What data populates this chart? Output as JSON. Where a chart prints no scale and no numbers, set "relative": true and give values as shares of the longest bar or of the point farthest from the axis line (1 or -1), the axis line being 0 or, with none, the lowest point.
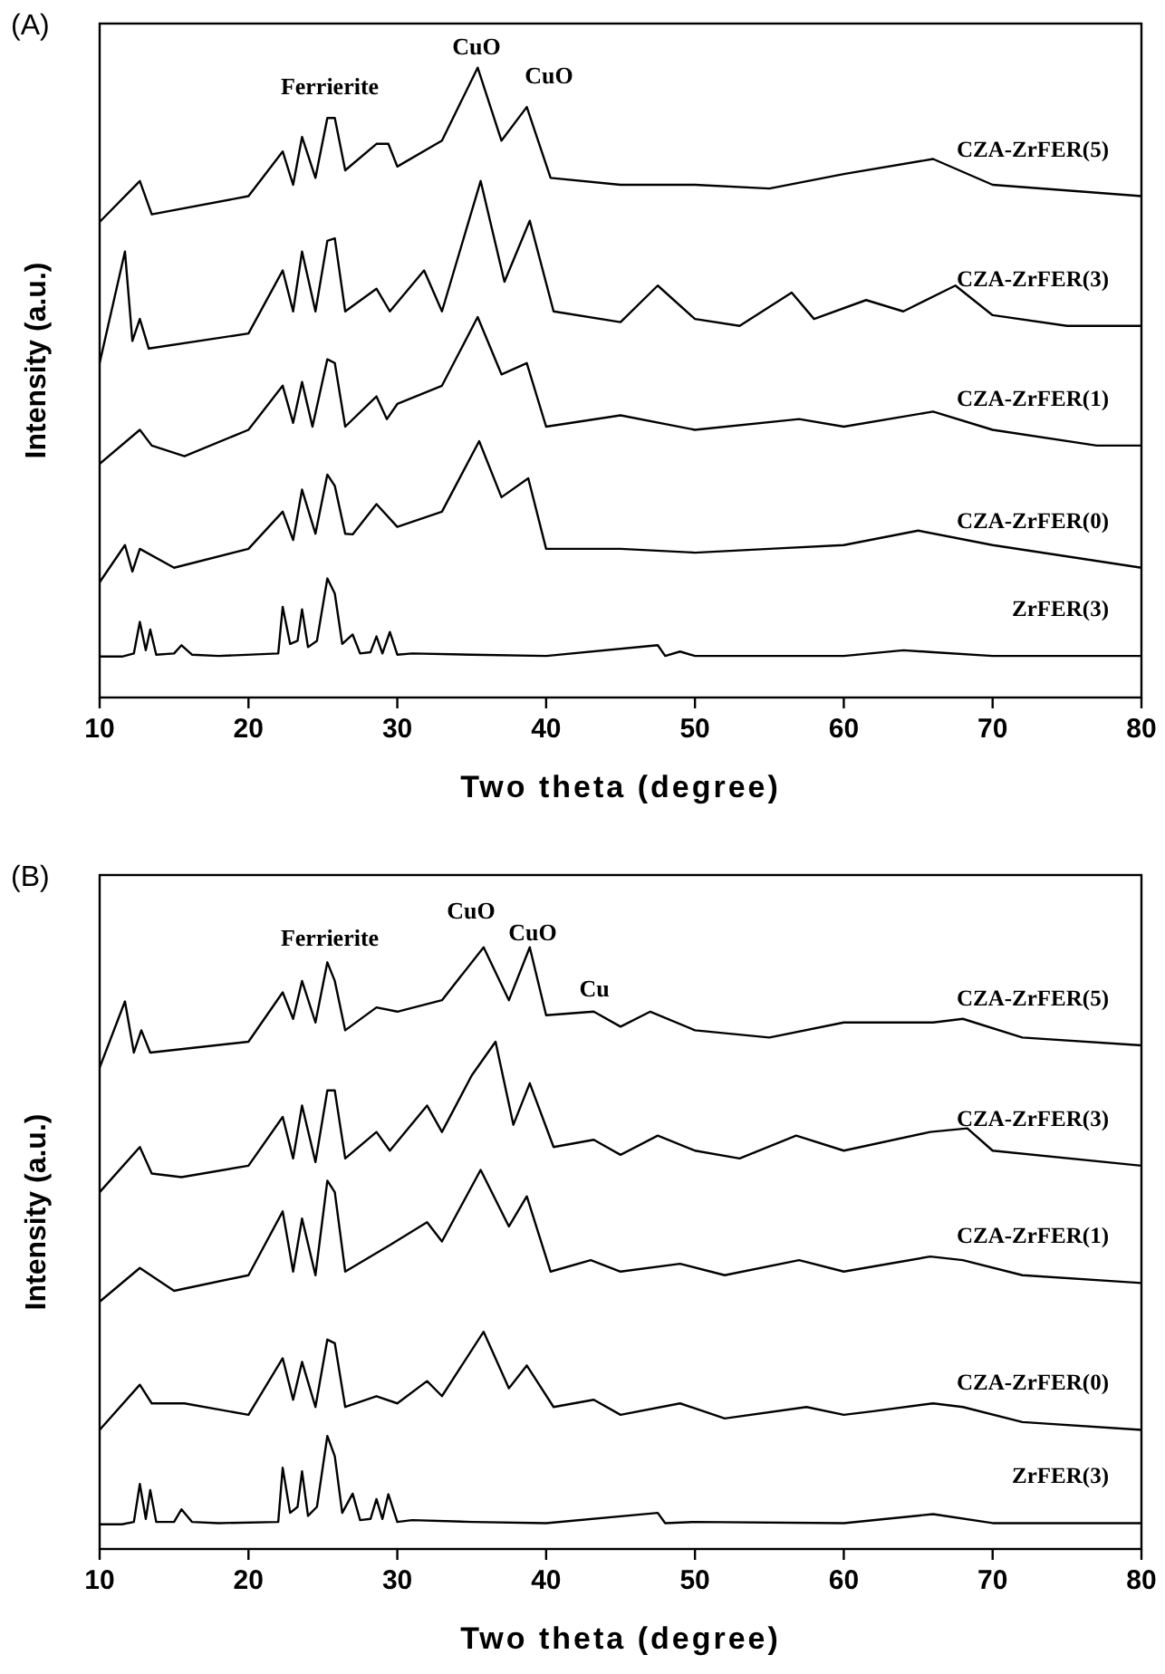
{
  "chart_data": [
    {
      "type": "line",
      "relative": true,
      "xlim": [
        10,
        80
      ],
      "xticks": [
        10,
        20,
        30,
        40,
        50,
        60,
        70,
        80
      ],
      "xlabel": "Two theta (degree)",
      "ylabel": "Intensity (a.u.)",
      "tick_labels": "x",
      "annotations": [
        "(A)",
        "Ferrierite",
        "CuO",
        "CuO"
      ],
      "series": [
        {
          "name": "ZrFER(3)",
          "color": "#000000",
          "x": [
            10,
            11.5,
            12.3,
            12.7,
            13.1,
            13.4,
            13.8,
            15,
            15.5,
            16.2,
            18,
            22,
            22.3,
            22.8,
            23.3,
            23.6,
            24,
            24.6,
            25.3,
            25.8,
            26.3,
            27,
            27.5,
            28.2,
            28.6,
            29,
            29.5,
            30,
            31,
            35,
            40,
            47.5,
            48,
            49,
            50,
            60,
            64,
            66,
            70,
            80
          ],
          "values": [
            0.065,
            0.065,
            0.07,
            0.12,
            0.075,
            0.108,
            0.068,
            0.07,
            0.083,
            0.068,
            0.066,
            0.07,
            0.144,
            0.085,
            0.09,
            0.14,
            0.08,
            0.09,
            0.189,
            0.165,
            0.085,
            0.1,
            0.07,
            0.072,
            0.097,
            0.07,
            0.104,
            0.068,
            0.07,
            0.068,
            0.066,
            0.083,
            0.066,
            0.073,
            0.066,
            0.066,
            0.075,
            0.072,
            0.066,
            0.066
          ]
        },
        {
          "name": "CZA-ZrFER(0)",
          "color": "#000000",
          "x": [
            10,
            11.7,
            12.2,
            12.7,
            15,
            20,
            22.3,
            23,
            23.6,
            24.5,
            25.3,
            25.8,
            26.5,
            27,
            28.6,
            30,
            33,
            35.5,
            37,
            38.8,
            40,
            45,
            50,
            55,
            60,
            65,
            70,
            75,
            80
          ],
          "values": [
            0.183,
            0.242,
            0.2,
            0.236,
            0.206,
            0.236,
            0.295,
            0.25,
            0.33,
            0.26,
            0.354,
            0.336,
            0.26,
            0.259,
            0.307,
            0.271,
            0.295,
            0.407,
            0.318,
            0.348,
            0.236,
            0.236,
            0.23,
            0.236,
            0.242,
            0.265,
            0.242,
            0.224,
            0.206
          ]
        },
        {
          "name": "CZA-ZrFER(1)",
          "color": "#000000",
          "x": [
            10,
            12.7,
            13.5,
            15.7,
            20,
            22.3,
            23,
            23.6,
            24.3,
            25.3,
            25.8,
            26.5,
            28.6,
            29.3,
            30,
            33,
            35.4,
            37,
            38.7,
            40,
            45,
            50,
            57,
            60,
            66,
            70,
            77,
            80
          ],
          "values": [
            0.371,
            0.425,
            0.4,
            0.383,
            0.425,
            0.495,
            0.436,
            0.501,
            0.43,
            0.537,
            0.531,
            0.43,
            0.478,
            0.442,
            0.466,
            0.495,
            0.604,
            0.513,
            0.531,
            0.43,
            0.448,
            0.425,
            0.442,
            0.43,
            0.454,
            0.425,
            0.4,
            0.4
          ]
        },
        {
          "name": "CZA-ZrFER(3)",
          "color": "#000000",
          "x": [
            10,
            11.7,
            12.2,
            12.7,
            13.3,
            20,
            22.3,
            23,
            23.6,
            24.5,
            25.3,
            25.8,
            26.5,
            28.6,
            29.5,
            31.8,
            33,
            35.6,
            37.2,
            38.9,
            40.5,
            45,
            47.5,
            50,
            53,
            56.5,
            58,
            61.5,
            64,
            67.5,
            70,
            75,
            80
          ],
          "values": [
            0.531,
            0.708,
            0.566,
            0.601,
            0.554,
            0.578,
            0.678,
            0.613,
            0.708,
            0.613,
            0.725,
            0.729,
            0.613,
            0.649,
            0.613,
            0.678,
            0.613,
            0.82,
            0.66,
            0.757,
            0.613,
            0.596,
            0.654,
            0.601,
            0.59,
            0.643,
            0.601,
            0.631,
            0.613,
            0.654,
            0.607,
            0.59,
            0.59
          ]
        },
        {
          "name": "CZA-ZrFER(5)",
          "color": "#000000",
          "x": [
            10,
            12.7,
            13.5,
            20,
            22.3,
            23,
            23.6,
            24.5,
            25.3,
            25.8,
            26.5,
            28.6,
            29.4,
            30,
            33,
            35.4,
            37,
            38.7,
            40.3,
            45,
            50,
            55,
            60,
            66,
            70,
            80
          ],
          "values": [
            0.755,
            0.82,
            0.767,
            0.796,
            0.867,
            0.814,
            0.89,
            0.825,
            0.92,
            0.92,
            0.837,
            0.879,
            0.879,
            0.843,
            0.884,
            1.0,
            0.884,
            0.9375,
            0.825,
            0.814,
            0.814,
            0.808,
            0.831,
            0.855,
            0.814,
            0.796
          ]
        }
      ]
    },
    {
      "type": "line",
      "relative": true,
      "xlim": [
        10,
        80
      ],
      "xticks": [
        10,
        20,
        30,
        40,
        50,
        60,
        70,
        80
      ],
      "xlabel": "Two theta (degree)",
      "ylabel": "Intensity (a.u.)",
      "tick_labels": "x",
      "annotations": [
        "(B)",
        "Ferrierite",
        "CuO",
        "CuO",
        "Cu"
      ],
      "series": [
        {
          "name": "ZrFER(3)",
          "color": "#000000",
          "x": [
            10,
            11.5,
            12.3,
            12.7,
            13.1,
            13.4,
            13.8,
            15,
            15.5,
            16.2,
            18,
            22,
            22.3,
            22.8,
            23.3,
            23.6,
            24,
            24.6,
            25.3,
            25.8,
            26.3,
            27,
            27.5,
            28.2,
            28.6,
            29,
            29.4,
            30,
            31,
            35,
            40,
            47.5,
            48,
            50,
            60,
            66,
            70,
            80
          ],
          "values": [
            0.041,
            0.041,
            0.045,
            0.108,
            0.05,
            0.098,
            0.045,
            0.045,
            0.066,
            0.045,
            0.043,
            0.045,
            0.135,
            0.06,
            0.07,
            0.129,
            0.055,
            0.07,
            0.188,
            0.154,
            0.06,
            0.092,
            0.048,
            0.05,
            0.083,
            0.05,
            0.091,
            0.045,
            0.048,
            0.045,
            0.043,
            0.06,
            0.043,
            0.045,
            0.043,
            0.058,
            0.043,
            0.043
          ]
        },
        {
          "name": "CZA-ZrFER(0)",
          "color": "#000000",
          "x": [
            10,
            12.7,
            13.5,
            15.7,
            20,
            22.3,
            23,
            23.6,
            24.5,
            25.3,
            25.8,
            26.5,
            28.6,
            30,
            32,
            33,
            35.8,
            37.5,
            38.7,
            40.5,
            43.2,
            45,
            49,
            52,
            57.5,
            60,
            62,
            66,
            68,
            72,
            80
          ],
          "values": [
            0.198,
            0.273,
            0.242,
            0.242,
            0.223,
            0.317,
            0.248,
            0.311,
            0.236,
            0.348,
            0.342,
            0.236,
            0.254,
            0.242,
            0.279,
            0.254,
            0.361,
            0.267,
            0.305,
            0.236,
            0.248,
            0.223,
            0.242,
            0.217,
            0.236,
            0.223,
            0.229,
            0.242,
            0.236,
            0.211,
            0.198
          ]
        },
        {
          "name": "CZA-ZrFER(1)",
          "color": "#000000",
          "x": [
            10,
            12.7,
            15,
            20,
            22.3,
            23,
            23.6,
            24.5,
            25.3,
            25.8,
            26.5,
            28.6,
            29.5,
            32,
            33,
            35.6,
            37.5,
            38.7,
            40.3,
            43,
            45,
            49,
            52,
            57,
            60,
            65.8,
            68,
            72,
            80
          ],
          "values": [
            0.411,
            0.467,
            0.429,
            0.455,
            0.561,
            0.461,
            0.549,
            0.455,
            0.612,
            0.593,
            0.461,
            0.492,
            0.505,
            0.543,
            0.511,
            0.63,
            0.536,
            0.586,
            0.461,
            0.48,
            0.461,
            0.474,
            0.455,
            0.48,
            0.461,
            0.486,
            0.48,
            0.455,
            0.442
          ]
        },
        {
          "name": "CZA-ZrFER(3)",
          "color": "#000000",
          "x": [
            10,
            12.7,
            13.5,
            15.5,
            20,
            22.3,
            23,
            23.6,
            24.5,
            25.3,
            25.8,
            26.5,
            28.6,
            29.5,
            32,
            33,
            35,
            36.6,
            37.8,
            38.9,
            40.5,
            43.2,
            45,
            47.5,
            50,
            53,
            56.8,
            60,
            65.8,
            68.3,
            70,
            80
          ],
          "values": [
            0.593,
            0.668,
            0.624,
            0.618,
            0.637,
            0.718,
            0.649,
            0.737,
            0.643,
            0.762,
            0.762,
            0.649,
            0.693,
            0.662,
            0.737,
            0.693,
            0.787,
            0.843,
            0.705,
            0.774,
            0.668,
            0.68,
            0.655,
            0.687,
            0.662,
            0.649,
            0.687,
            0.662,
            0.693,
            0.699,
            0.662,
            0.637
          ]
        },
        {
          "name": "CZA-ZrFER(5)",
          "color": "#000000",
          "x": [
            10,
            11.7,
            12.3,
            12.8,
            13.4,
            20,
            22.3,
            23,
            23.6,
            24.5,
            25.3,
            25.8,
            26.5,
            28.6,
            30,
            33,
            35.8,
            37.5,
            38.9,
            40,
            43.2,
            45,
            47,
            50,
            55,
            60,
            66,
            68,
            72,
            80
          ],
          "values": [
            0.8,
            0.91,
            0.825,
            0.862,
            0.825,
            0.843,
            0.925,
            0.881,
            0.944,
            0.875,
            0.975,
            0.944,
            0.862,
            0.9,
            0.893,
            0.912,
            1.0,
            0.912,
            1.0,
            0.887,
            0.893,
            0.868,
            0.893,
            0.862,
            0.85,
            0.875,
            0.875,
            0.881,
            0.85,
            0.837
          ]
        }
      ]
    }
  ]
}
